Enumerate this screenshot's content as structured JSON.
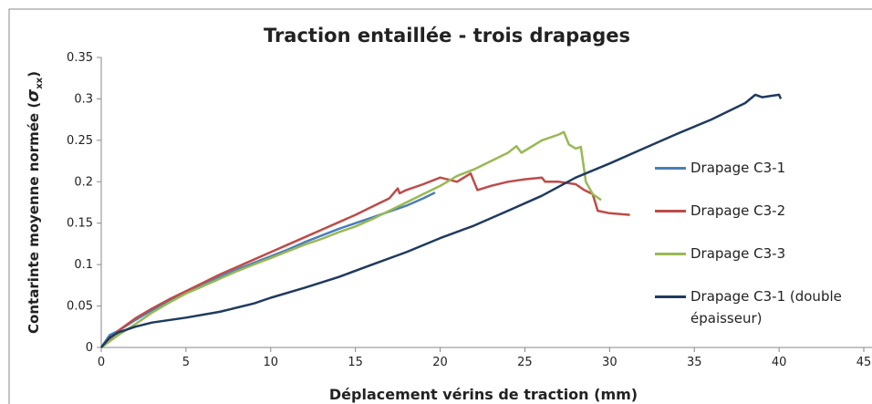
{
  "chart_data": {
    "type": "line",
    "title": "Traction entaillée - trois drapages",
    "xlabel": "Déplacement vérins de traction (mm)",
    "ylabel": [
      "Contarinte moyenne normée (",
      "σ",
      "xx",
      ")"
    ],
    "xlim": [
      0,
      45
    ],
    "xticks": [
      0,
      5,
      10,
      15,
      20,
      25,
      30,
      35,
      40,
      45
    ],
    "ylim": [
      0,
      0.35
    ],
    "yticks": [
      0,
      0.05,
      0.1,
      0.15,
      0.2,
      0.25,
      0.3,
      0.35
    ],
    "grid": false,
    "legend": "right",
    "series": [
      {
        "name": "Drapage C3-1",
        "color": "#4a7ebb",
        "x": [
          0,
          0.5,
          1,
          2,
          3,
          4,
          5,
          6,
          7,
          8,
          9,
          10,
          11,
          12,
          13,
          14,
          15,
          16,
          17,
          18,
          19,
          19.7
        ],
        "values": [
          0,
          0.015,
          0.02,
          0.033,
          0.045,
          0.056,
          0.066,
          0.075,
          0.085,
          0.094,
          0.102,
          0.11,
          0.118,
          0.127,
          0.135,
          0.143,
          0.15,
          0.157,
          0.164,
          0.171,
          0.18,
          0.187
        ]
      },
      {
        "name": "Drapage C3-2",
        "color": "#be4b48",
        "x": [
          0,
          1,
          2,
          3,
          4,
          5,
          6,
          7,
          8,
          9,
          10,
          11,
          12,
          13,
          14,
          15,
          16,
          17,
          17.5,
          17.6,
          18,
          19,
          20,
          21,
          21.8,
          22,
          22.2,
          23,
          24,
          25,
          26,
          26.2,
          27,
          28,
          28.5,
          29,
          29.3,
          30,
          31.2
        ],
        "values": [
          0,
          0.02,
          0.035,
          0.047,
          0.058,
          0.068,
          0.078,
          0.088,
          0.097,
          0.106,
          0.115,
          0.124,
          0.133,
          0.142,
          0.151,
          0.16,
          0.17,
          0.18,
          0.192,
          0.186,
          0.19,
          0.197,
          0.205,
          0.2,
          0.21,
          0.2,
          0.19,
          0.195,
          0.2,
          0.203,
          0.205,
          0.2,
          0.2,
          0.197,
          0.19,
          0.185,
          0.165,
          0.162,
          0.16
        ]
      },
      {
        "name": "Drapage C3-3",
        "color": "#98b954",
        "x": [
          0,
          1,
          2,
          3,
          4,
          5,
          6,
          7,
          8,
          9,
          10,
          11,
          12,
          13,
          14,
          15,
          16,
          17,
          18,
          19,
          20,
          21,
          22,
          23,
          24,
          24.5,
          24.8,
          26,
          27,
          27.3,
          27.6,
          28,
          28.3,
          28.6,
          29,
          29.5
        ],
        "values": [
          0,
          0.015,
          0.028,
          0.042,
          0.054,
          0.065,
          0.074,
          0.083,
          0.092,
          0.1,
          0.108,
          0.116,
          0.124,
          0.131,
          0.139,
          0.146,
          0.155,
          0.165,
          0.175,
          0.185,
          0.195,
          0.207,
          0.215,
          0.225,
          0.235,
          0.243,
          0.235,
          0.25,
          0.257,
          0.26,
          0.245,
          0.24,
          0.242,
          0.2,
          0.185,
          0.178
        ]
      },
      {
        "name": "Drapage C3-1 (double épaisseur)",
        "color": "#1f3a5f",
        "x": [
          0,
          0.5,
          1,
          2,
          3,
          5,
          7,
          9,
          10,
          12,
          14,
          16,
          18,
          20,
          22,
          24,
          26,
          28,
          30,
          32,
          34,
          36,
          38,
          38.6,
          39,
          40,
          40.1
        ],
        "values": [
          0,
          0.012,
          0.018,
          0.025,
          0.03,
          0.036,
          0.043,
          0.053,
          0.06,
          0.072,
          0.085,
          0.1,
          0.115,
          0.132,
          0.147,
          0.165,
          0.183,
          0.205,
          0.222,
          0.24,
          0.258,
          0.275,
          0.295,
          0.305,
          0.302,
          0.305,
          0.3
        ]
      }
    ]
  }
}
